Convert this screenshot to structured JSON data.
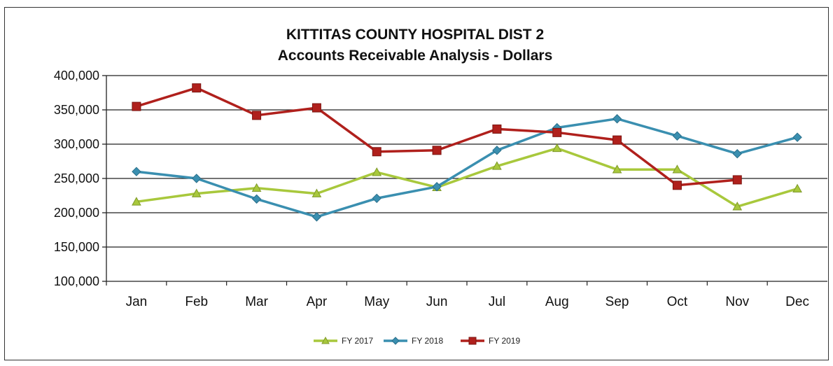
{
  "chart_data": {
    "type": "line",
    "title": "KITTITAS COUNTY HOSPITAL DIST 2",
    "subtitle": "Accounts Receivable Analysis - Dollars",
    "xlabel": "",
    "ylabel": "",
    "categories": [
      "Jan",
      "Feb",
      "Mar",
      "Apr",
      "May",
      "Jun",
      "Jul",
      "Aug",
      "Sep",
      "Oct",
      "Nov",
      "Dec"
    ],
    "ylim": [
      100000,
      400000
    ],
    "yticks": [
      100000,
      150000,
      200000,
      250000,
      300000,
      350000,
      400000
    ],
    "ytick_labels": [
      "100,000",
      "150,000",
      "200,000",
      "250,000",
      "300,000",
      "350,000",
      "400,000"
    ],
    "grid": true,
    "legend_position": "bottom",
    "series": [
      {
        "name": "FY 2017",
        "color": "#a8c83c",
        "marker": "triangle",
        "values": [
          216000,
          228000,
          236000,
          228000,
          259000,
          237000,
          268000,
          294000,
          263000,
          263000,
          209000,
          235000
        ]
      },
      {
        "name": "FY 2018",
        "color": "#3a8fb0",
        "marker": "diamond",
        "values": [
          260000,
          250000,
          220000,
          194000,
          221000,
          238000,
          291000,
          324000,
          337000,
          312000,
          286000,
          310000
        ]
      },
      {
        "name": "FY 2019",
        "color": "#b0201c",
        "marker": "square",
        "values": [
          355000,
          382000,
          342000,
          353000,
          289000,
          291000,
          322000,
          317000,
          306000,
          240000,
          248000,
          null
        ]
      }
    ]
  }
}
